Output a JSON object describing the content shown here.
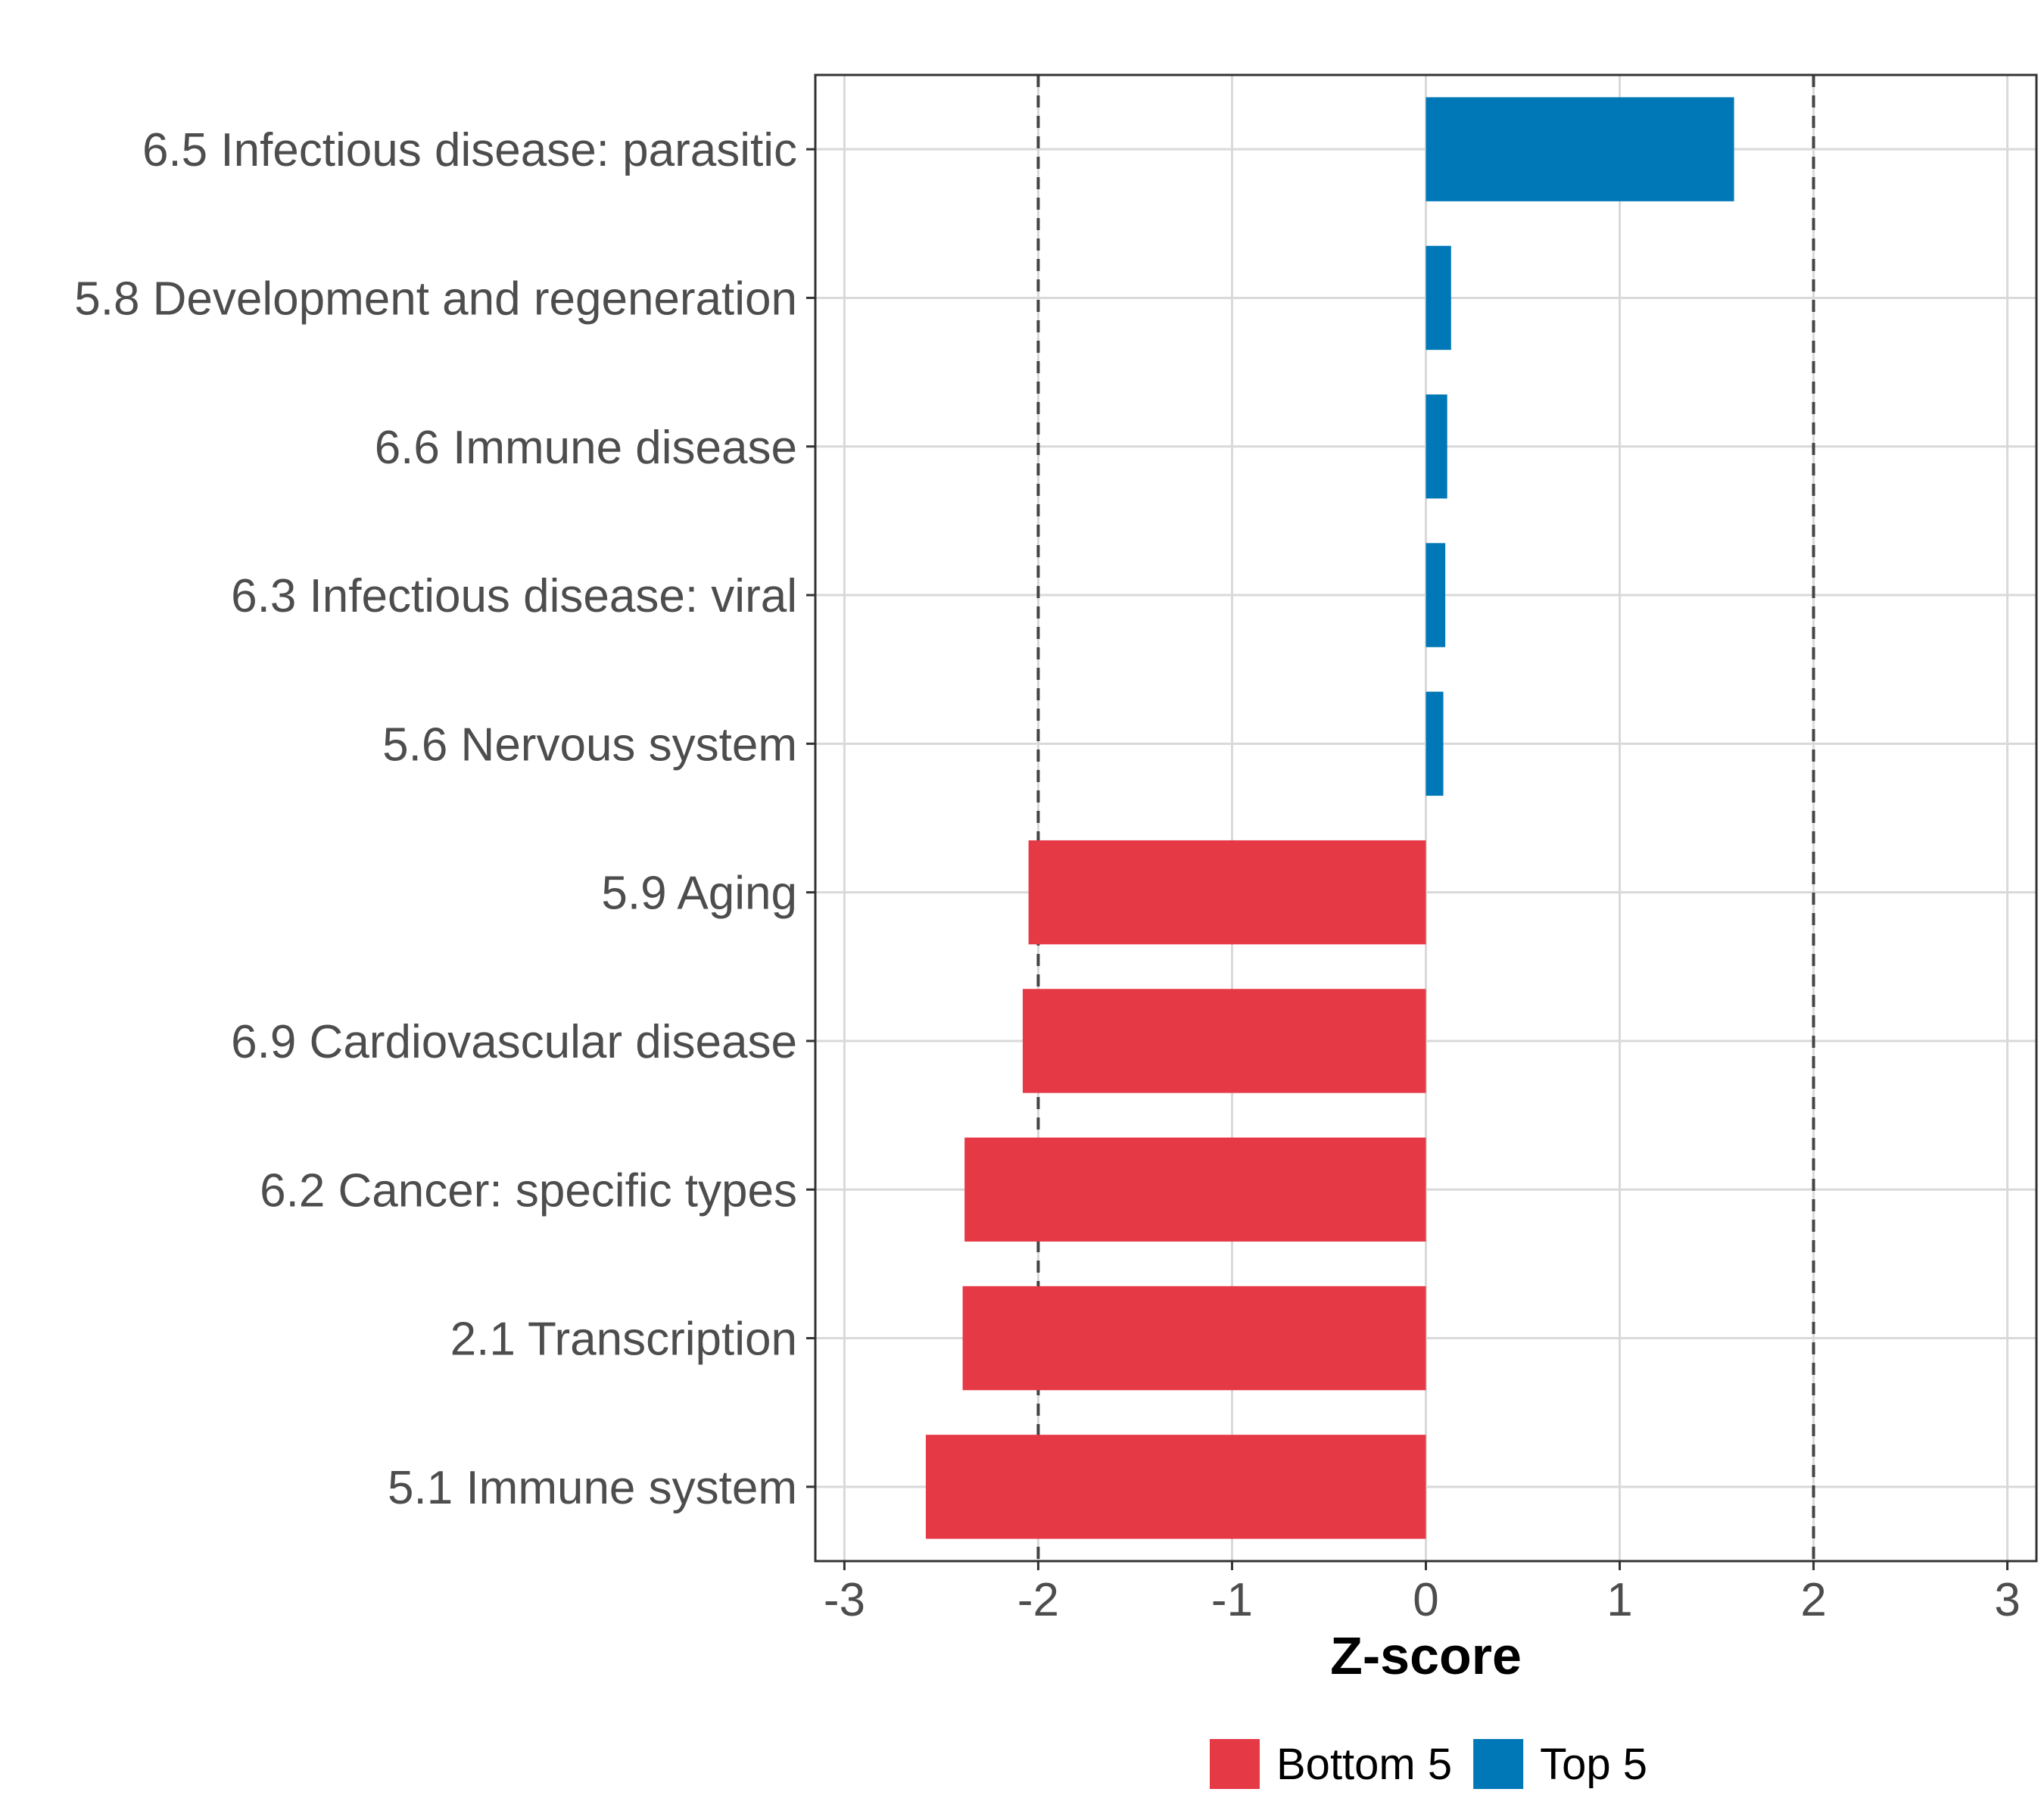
{
  "chart_data": {
    "type": "bar",
    "orientation": "horizontal",
    "categories": [
      "6.5 Infectious disease: parasitic",
      "5.8 Development and regeneration",
      "6.6 Immune disease",
      "6.3 Infectious disease: viral",
      "5.6 Nervous system",
      "5.9 Aging",
      "6.9 Cardiovascular disease",
      "6.2 Cancer: specific types",
      "2.1 Transcription",
      "5.1 Immune system"
    ],
    "values": [
      1.59,
      0.13,
      0.11,
      0.1,
      0.09,
      -2.05,
      -2.08,
      -2.38,
      -2.39,
      -2.58
    ],
    "groups": [
      "Top 5",
      "Top 5",
      "Top 5",
      "Top 5",
      "Top 5",
      "Bottom 5",
      "Bottom 5",
      "Bottom 5",
      "Bottom 5",
      "Bottom 5"
    ],
    "xlabel": "Z-score",
    "ylabel": "",
    "xlim": [
      -3.15,
      3.15
    ],
    "xticks": [
      -3,
      -2,
      -1,
      0,
      1,
      2,
      3
    ],
    "xtick_labels": [
      "-3",
      "-2",
      "-1",
      "0",
      "1",
      "2",
      "3"
    ],
    "reference_lines": [
      -2,
      2
    ],
    "grid": true,
    "legend": {
      "position": "bottom",
      "entries": [
        {
          "label": "Bottom 5",
          "color": "#e63946"
        },
        {
          "label": "Top 5",
          "color": "#0077b6"
        }
      ]
    },
    "colors": {
      "Top 5": "#0077b6",
      "Bottom 5": "#e63946"
    }
  }
}
